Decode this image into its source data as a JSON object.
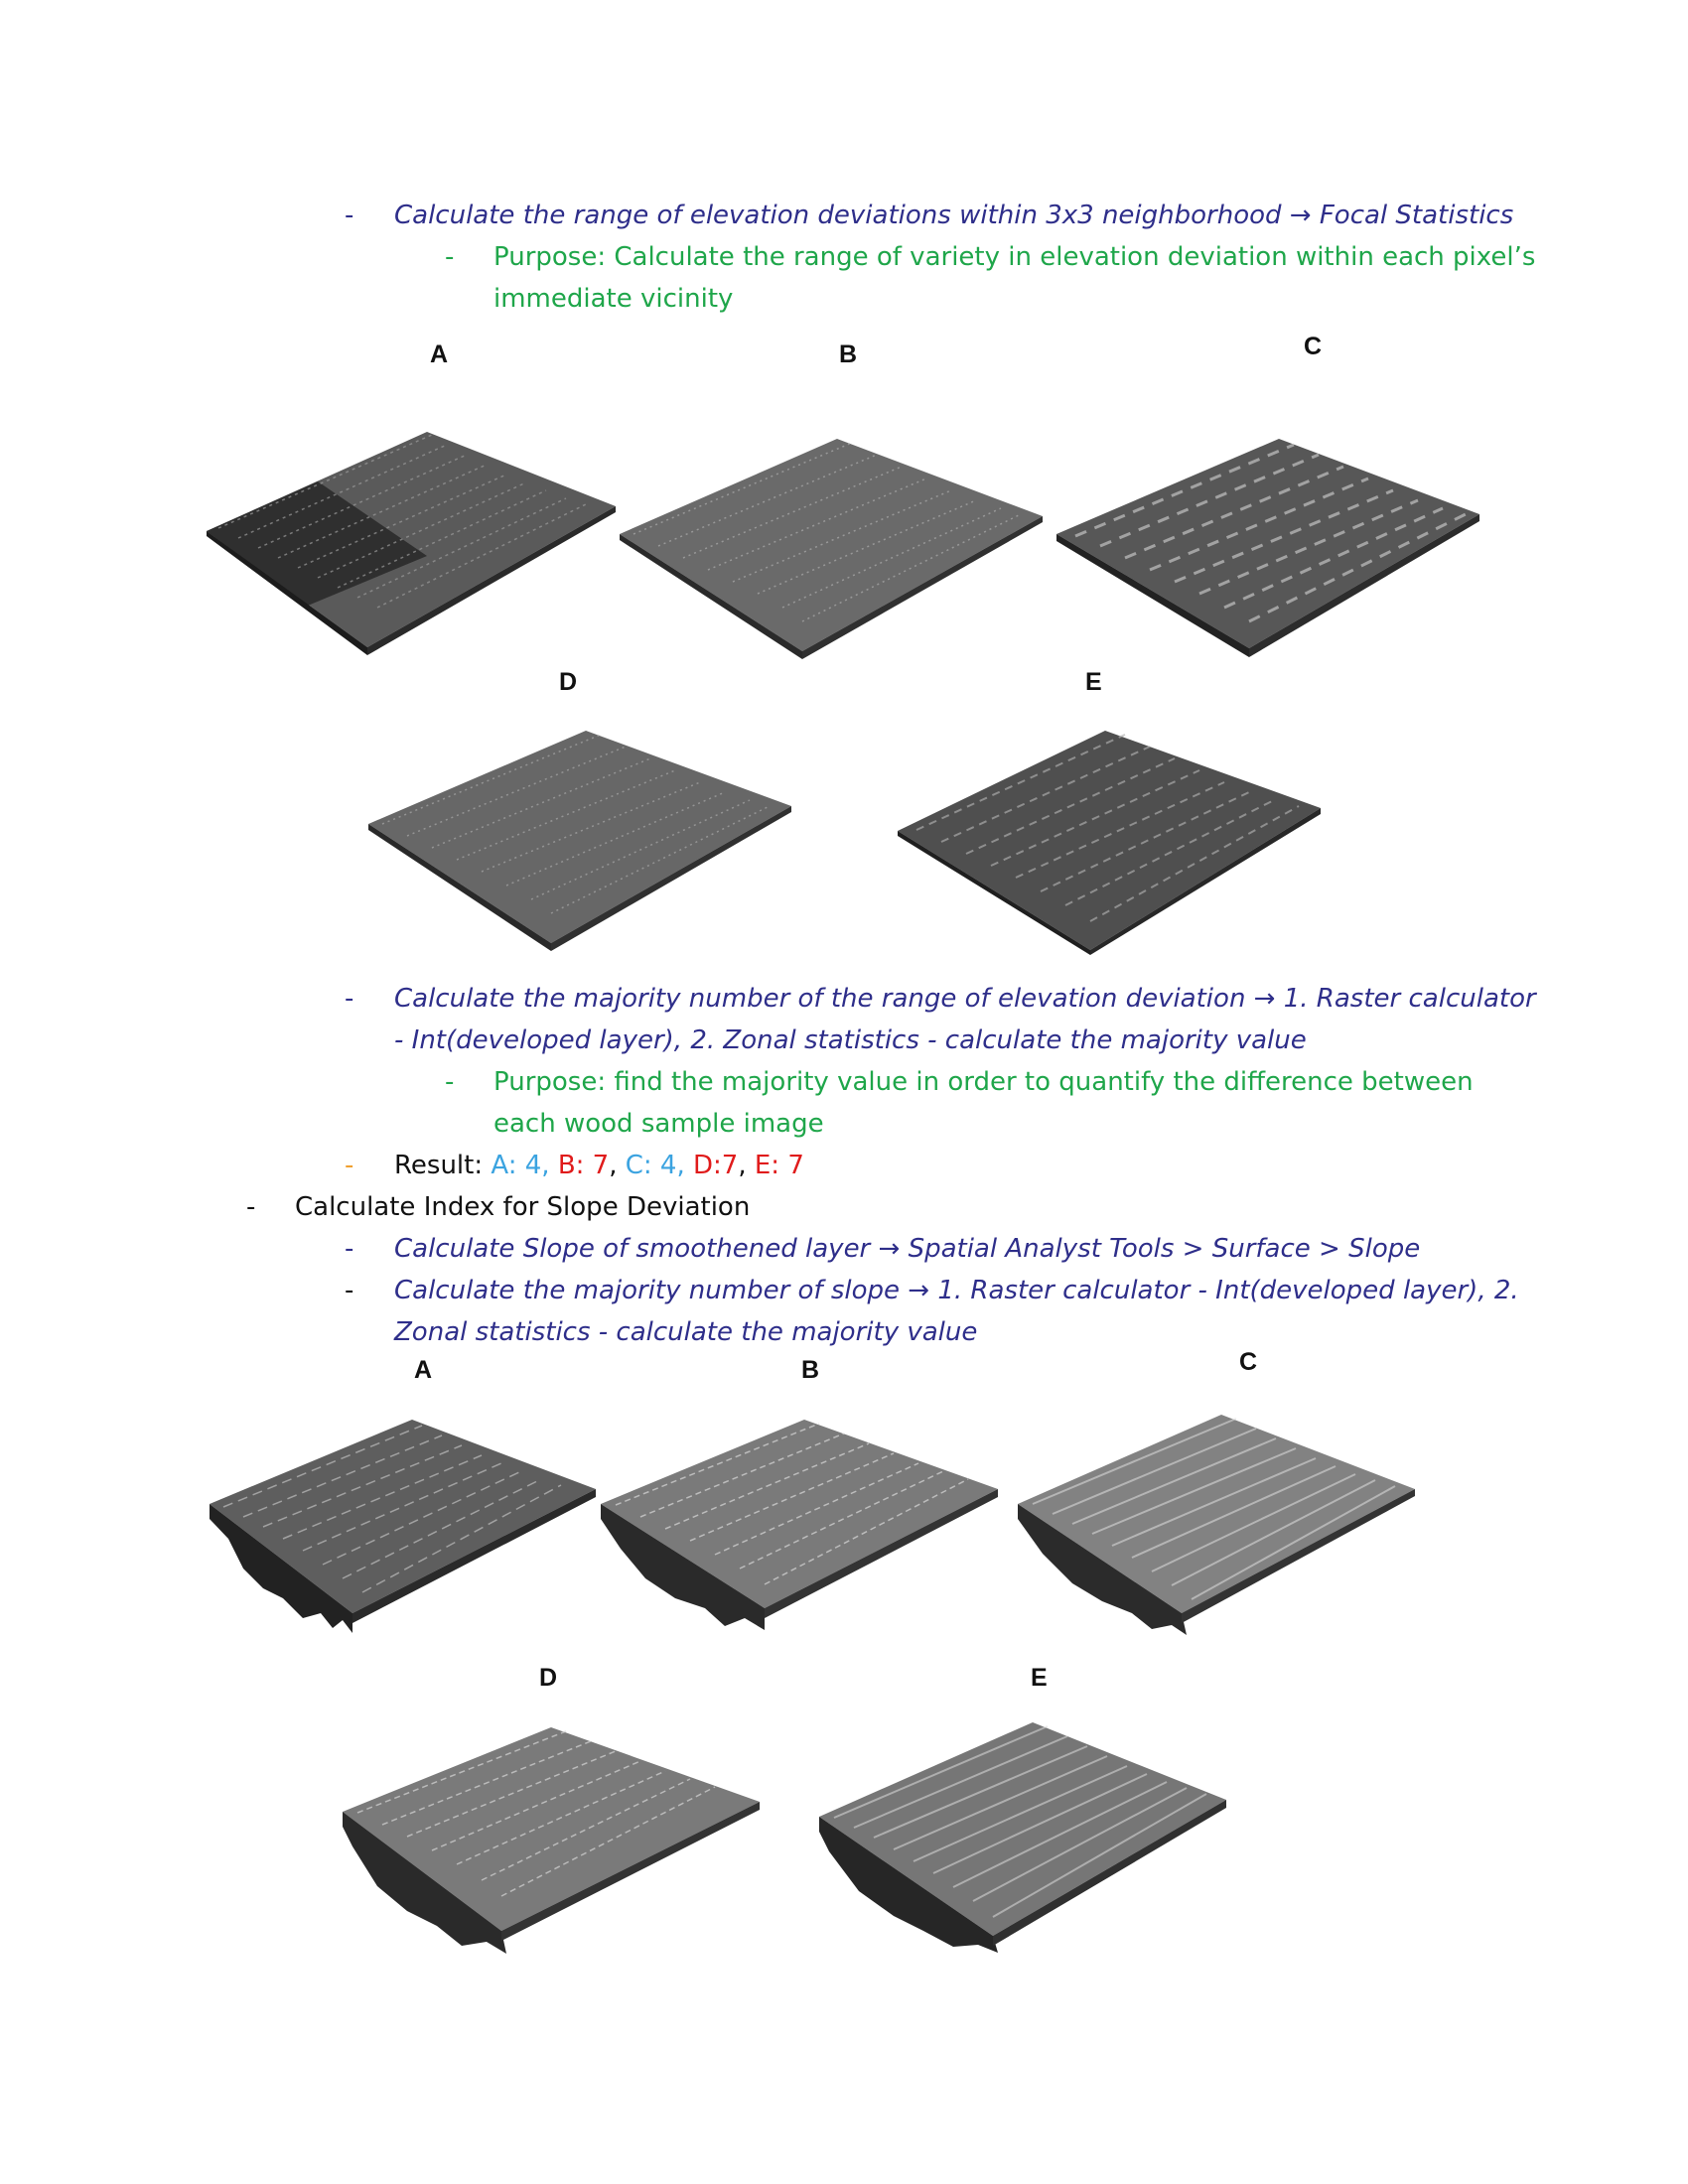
{
  "section1": {
    "bullet": "-",
    "step": "Calculate the range of elevation deviations within 3x3 neighborhood → Focal Statistics",
    "purpose_bullet": "-",
    "purpose_line1": "Purpose: Calculate the range of variety in elevation deviation within each pixel’s",
    "purpose_line2": "immediate vicinity",
    "figure_labels": [
      "A",
      "B",
      "C",
      "D",
      "E"
    ]
  },
  "section2": {
    "bullet": "-",
    "step_line1": "Calculate the majority number of the range of elevation deviation → 1. Raster calculator",
    "step_line2": "- Int(developed layer), 2. Zonal statistics - calculate the majority value",
    "purpose_bullet": "-",
    "purpose_line1": "Purpose: find the majority value in order to quantify the difference between",
    "purpose_line2": "each wood sample image",
    "result_bullet": "-",
    "result_label": "Result: ",
    "result_a": "A: 4,",
    "result_b": "B: 7",
    "comma1": ",",
    "result_c": "C: 4,",
    "result_d": "D:7",
    "comma2": ",",
    "result_e": "E: 7"
  },
  "section3": {
    "bullet": "-",
    "heading": "Calculate Index for Slope Deviation",
    "step1_bullet": "-",
    "step1": "Calculate Slope of smoothened layer → Spatial Analyst Tools > Surface > Slope",
    "step2_bullet": "-",
    "step2_line1": "Calculate the majority number of slope → 1. Raster calculator - Int(developed layer), 2.",
    "step2_line2": "Zonal statistics - calculate the majority value",
    "figure_labels": [
      "A",
      "B",
      "C",
      "D",
      "E"
    ]
  },
  "colors": {
    "step_text": "#2e2e8a",
    "purpose_text": "#1fa64a",
    "result_blue": "#3ba3e0",
    "result_red": "#e01b1b",
    "result_bullet": "#f0a030"
  }
}
